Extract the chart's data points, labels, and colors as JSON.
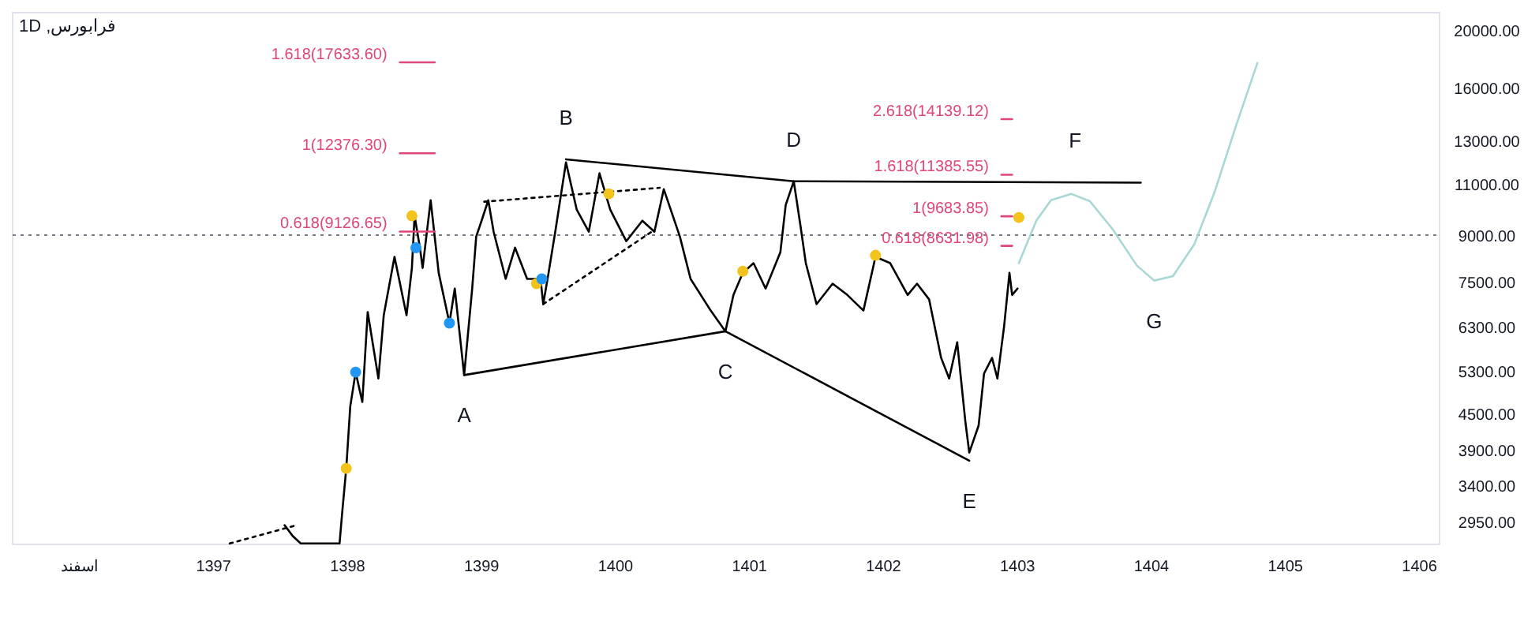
{
  "chart_data": {
    "type": "line",
    "title": "فرابورس, 1D",
    "log": "y",
    "grid": false,
    "xlim": [
      1395.5,
      1406.15
    ],
    "ylim": [
      2700,
      21400
    ],
    "xticks": [
      {
        "value": 1396,
        "label": "اسفند"
      },
      1397,
      1398,
      1399,
      1400,
      1401,
      1402,
      1403,
      1404,
      1405,
      1406
    ],
    "yticks": [
      {
        "value": 2950,
        "label": "2950.00"
      },
      {
        "value": 3400,
        "label": "3400.00"
      },
      {
        "value": 3900,
        "label": "3900.00"
      },
      {
        "value": 4500,
        "label": "4500.00"
      },
      {
        "value": 5300,
        "label": "5300.00"
      },
      {
        "value": 6300,
        "label": "6300.00"
      },
      {
        "value": 7500,
        "label": "7500.00"
      },
      {
        "value": 9000,
        "label": "9000.00"
      },
      {
        "value": 11000,
        "label": "11000.00"
      },
      {
        "value": 13000,
        "label": "13000.00"
      },
      {
        "value": 16000,
        "label": "16000.00"
      },
      {
        "value": 20000,
        "label": "20000.00"
      }
    ],
    "ref_lines": [
      {
        "axis": "y",
        "value": 9000,
        "line_style": "dotted",
        "color": "#787b86"
      }
    ],
    "series": [
      {
        "color": "#000000",
        "x": [
          1397.53,
          1397.59,
          1397.65,
          1397.94,
          1397.96,
          1397.99,
          1398.02,
          1398.06,
          1398.11,
          1398.15,
          1398.23,
          1398.27,
          1398.35,
          1398.44,
          1398.48,
          1398.5,
          1398.54,
          1398.56,
          1398.62,
          1398.68,
          1398.76,
          1398.8,
          1398.87,
          1398.93,
          1398.96,
          1399.0,
          1399.05,
          1399.09,
          1399.18,
          1399.25,
          1399.34,
          1399.44,
          1399.46,
          1399.5,
          1399.55,
          1399.63,
          1399.71,
          1399.8,
          1399.88,
          1399.96,
          1400.08,
          1400.2,
          1400.29,
          1400.36,
          1400.48,
          1400.56,
          1400.71,
          1400.82,
          1400.88,
          1400.95,
          1401.03,
          1401.12,
          1401.23,
          1401.27,
          1401.33,
          1401.38,
          1401.42,
          1401.5,
          1401.62,
          1401.73,
          1401.85,
          1401.94,
          1402.05,
          1402.18,
          1402.25,
          1402.34,
          1402.43,
          1402.49,
          1402.55,
          1402.61,
          1402.64,
          1402.71,
          1402.75,
          1402.81,
          1402.85,
          1402.9,
          1402.94,
          1402.96,
          1403.0
        ],
        "values": [
          2910,
          2790,
          2710,
          2710,
          3060,
          3630,
          4620,
          5280,
          4700,
          6670,
          5150,
          6590,
          8270,
          6590,
          7920,
          9700,
          8570,
          7920,
          10310,
          7770,
          6390,
          7310,
          5220,
          7310,
          8950,
          9520,
          10310,
          9120,
          7590,
          8570,
          7590,
          7590,
          6880,
          7770,
          9120,
          11950,
          9940,
          9120,
          11450,
          9940,
          8790,
          9520,
          9120,
          10760,
          8950,
          7590,
          6710,
          6190,
          7130,
          7770,
          8070,
          7310,
          8420,
          10120,
          11100,
          9340,
          8070,
          6880,
          7450,
          7130,
          6710,
          8270,
          8070,
          7130,
          7450,
          7010,
          5580,
          5150,
          5930,
          4370,
          3860,
          4290,
          5250,
          5580,
          5150,
          6310,
          7770,
          7130,
          7310
        ]
      },
      {
        "color": "#000000",
        "x": [
          1398.87,
          1400.82,
          1402.64
        ],
        "values": [
          5220,
          6190,
          3740
        ]
      },
      {
        "color": "#000000",
        "x": [
          1399.63,
          1401.33,
          1403.92
        ],
        "values": [
          12090,
          11100,
          11040
        ]
      },
      {
        "color": "#000000",
        "line_style": "dotted",
        "x": [
          1397.12,
          1397.62
        ],
        "values": [
          2710,
          2910
        ]
      },
      {
        "color": "#000000",
        "line_style": "dotted",
        "x": [
          1399.02,
          1400.33
        ],
        "values": [
          10250,
          10820
        ]
      },
      {
        "color": "#000000",
        "line_style": "dotted",
        "x": [
          1399.46,
          1400.27
        ],
        "values": [
          6880,
          9120
        ]
      },
      {
        "color": "#a8d8d5",
        "x": [
          1403.01,
          1403.14,
          1403.25,
          1403.4,
          1403.54,
          1403.71,
          1403.89,
          1404.02,
          1404.16,
          1404.32,
          1404.47,
          1404.63,
          1404.79
        ],
        "values": [
          8070,
          9520,
          10310,
          10570,
          10270,
          9210,
          8000,
          7540,
          7670,
          8690,
          10630,
          13760,
          17590
        ]
      },
      {
        "type": "scatter",
        "marker": "circle",
        "color": "#f2c31b",
        "x": [
          1397.99,
          1398.48,
          1399.41,
          1399.95,
          1400.95,
          1401.94,
          1403.01
        ],
        "values": [
          3630,
          9700,
          7450,
          10570,
          7820,
          8320,
          9640
        ]
      },
      {
        "type": "scatter",
        "marker": "circle",
        "color": "#2196f3",
        "x": [
          1398.06,
          1398.51,
          1398.76,
          1399.45
        ],
        "values": [
          5280,
          8570,
          6390,
          7590
        ]
      },
      {
        "color": "#e0457b",
        "x": [
          1398.39,
          1398.65
        ],
        "values": [
          17633.6,
          17633.6
        ],
        "value_labels": [
          "1.618(17633.60)",
          null
        ]
      },
      {
        "color": "#e0457b",
        "x": [
          1398.39,
          1398.65
        ],
        "values": [
          12376.3,
          12376.3
        ],
        "value_labels": [
          "1(12376.30)",
          null
        ]
      },
      {
        "color": "#e0457b",
        "x": [
          1398.39,
          1398.65
        ],
        "values": [
          9126.65,
          9126.65
        ],
        "value_labels": [
          "0.618(9126.65)",
          null
        ]
      },
      {
        "color": "#e0457b",
        "x": [
          1402.88,
          1402.96
        ],
        "values": [
          14139.12,
          14139.12
        ],
        "value_labels": [
          "2.618(14139.12)",
          null
        ]
      },
      {
        "color": "#e0457b",
        "x": [
          1402.88,
          1402.96
        ],
        "values": [
          11385.55,
          11385.55
        ],
        "value_labels": [
          "1.618(11385.55)",
          null
        ]
      },
      {
        "color": "#e0457b",
        "x": [
          1402.88,
          1402.96
        ],
        "values": [
          9683.85,
          9683.85
        ],
        "value_labels": [
          "1(9683.85)",
          null
        ]
      },
      {
        "color": "#e0457b",
        "x": [
          1402.88,
          1402.96
        ],
        "values": [
          8631.98,
          8631.98
        ],
        "value_labels": [
          "0.618(8631.98)",
          null
        ]
      }
    ],
    "annotations": [
      {
        "text": "A",
        "x": 1398.87,
        "y": 5220
      },
      {
        "text": "B",
        "x": 1399.63,
        "y": 12090
      },
      {
        "text": "C",
        "x": 1400.82,
        "y": 6190
      },
      {
        "text": "D",
        "x": 1401.33,
        "y": 11100
      },
      {
        "text": "E",
        "x": 1402.64,
        "y": 3740
      },
      {
        "text": "F",
        "x": 1403.43,
        "y": 11050
      },
      {
        "text": "G",
        "x": 1404.02,
        "y": 7540
      }
    ]
  }
}
